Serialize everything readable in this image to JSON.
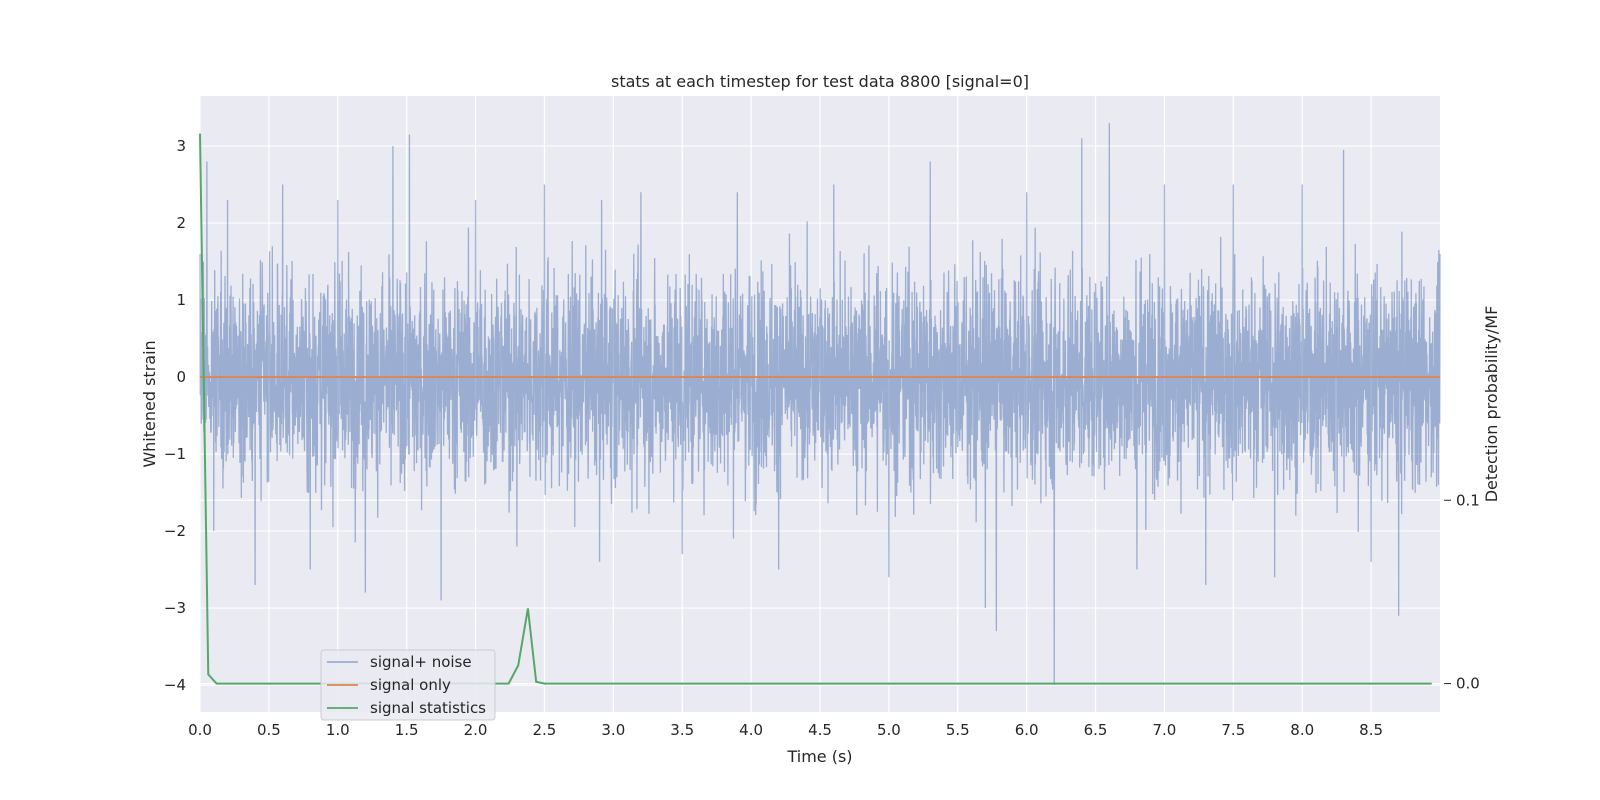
{
  "chart_data": {
    "type": "line",
    "title": "stats at each timestep for test data 8800 [signal=0]",
    "xlabel": "Time (s)",
    "ylabel": "Whitened strain",
    "y2label": "Detection probability/MF",
    "xlim": [
      0.0,
      9.0
    ],
    "ylim": [
      -4.35,
      3.65
    ],
    "y2lim": [
      -0.0155,
      0.3205
    ],
    "x_ticks": [
      "0.0",
      "0.5",
      "1.0",
      "1.5",
      "2.0",
      "2.5",
      "3.0",
      "3.5",
      "4.0",
      "4.5",
      "5.0",
      "5.5",
      "6.0",
      "6.5",
      "7.0",
      "7.5",
      "8.0",
      "8.5"
    ],
    "y_ticks": [
      "3",
      "2",
      "1",
      "0",
      "−1",
      "−2",
      "−3",
      "−4"
    ],
    "y2_ticks": [
      "0.1",
      "0.0"
    ],
    "grid": true,
    "legend_position": "lower left",
    "series": [
      {
        "name": "signal+ noise",
        "axis": "left",
        "color": "#4c72b0",
        "alpha": 0.5,
        "description": "whitened noise, std ≈ 1, range about −4.0 to 3.3",
        "x": [
          0.0,
          0.05,
          0.1,
          0.2,
          0.4,
          0.6,
          0.8,
          1.0,
          1.2,
          1.4,
          1.52,
          1.75,
          2.0,
          2.3,
          2.5,
          2.9,
          3.2,
          3.5,
          3.9,
          4.2,
          4.6,
          5.0,
          5.3,
          5.7,
          5.78,
          6.0,
          6.2,
          6.4,
          6.6,
          6.8,
          7.0,
          7.3,
          7.5,
          7.8,
          8.0,
          8.3,
          8.5,
          8.7,
          9.0
        ],
        "values": [
          1.6,
          2.8,
          -2.0,
          2.3,
          -2.7,
          2.5,
          -2.5,
          2.3,
          -2.8,
          3.0,
          3.15,
          -2.9,
          2.3,
          -2.2,
          2.5,
          -2.4,
          2.4,
          -2.3,
          2.4,
          -2.5,
          2.5,
          -2.6,
          2.8,
          -3.0,
          -3.3,
          2.4,
          -4.0,
          3.1,
          3.3,
          -2.5,
          2.5,
          -2.7,
          2.5,
          -2.6,
          2.5,
          2.95,
          -2.4,
          -3.1,
          1.6
        ]
      },
      {
        "name": "signal only",
        "axis": "left",
        "color": "#dd8452",
        "x": [
          0.0,
          9.0
        ],
        "values": [
          0.0,
          0.0
        ]
      },
      {
        "name": "signal statistics",
        "axis": "right",
        "color": "#55a868",
        "x": [
          0.0,
          0.06,
          0.12,
          1.0,
          2.0,
          2.24,
          2.31,
          2.38,
          2.44,
          2.5,
          3.0,
          5.0,
          7.0,
          8.94
        ],
        "values": [
          0.3,
          0.005,
          0.0,
          0.0,
          0.0,
          0.0,
          0.01,
          0.041,
          0.001,
          0.0,
          0.0,
          0.0,
          0.0,
          0.0
        ]
      }
    ]
  }
}
